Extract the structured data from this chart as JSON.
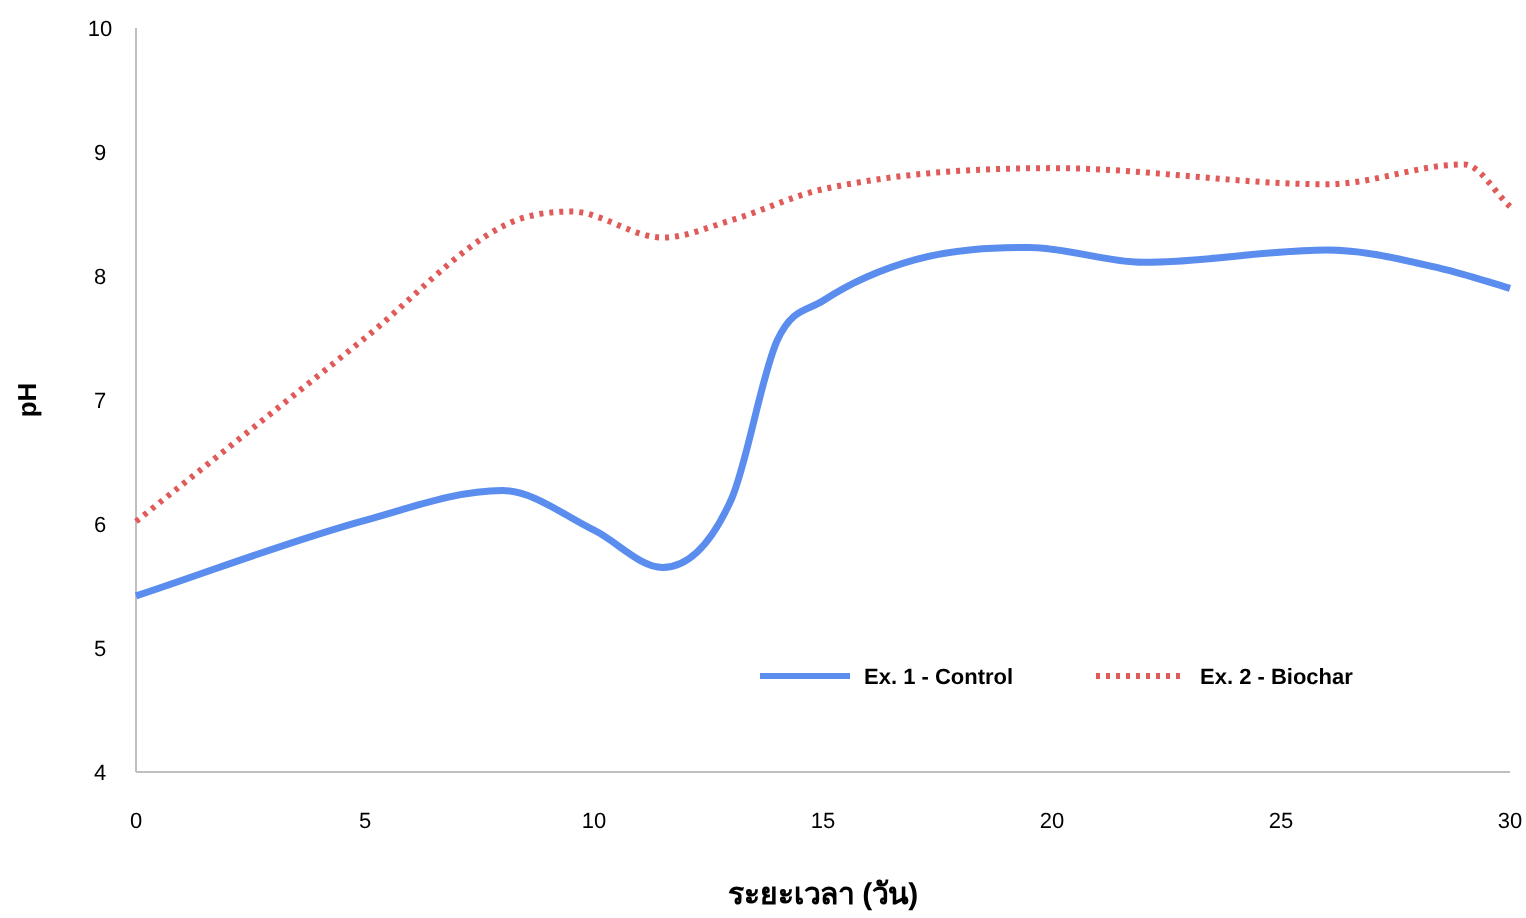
{
  "chart_data": {
    "type": "line",
    "xlabel": "ระยะเวลา (วัน)",
    "ylabel": "pH",
    "xlim": [
      0,
      30
    ],
    "ylim": [
      4,
      10
    ],
    "xticks": [
      0,
      5,
      10,
      15,
      20,
      25,
      30
    ],
    "yticks": [
      4,
      5,
      6,
      7,
      8,
      9,
      10
    ],
    "legend": "bottom",
    "grid": false,
    "series": [
      {
        "name": "Ex. 1 - Control",
        "color": "#5b8def",
        "line_style": "solid",
        "x": [
          0,
          5,
          8,
          10,
          11.5,
          13,
          14,
          15,
          17,
          19.5,
          22,
          26,
          28.5,
          30
        ],
        "values": [
          5.42,
          6.03,
          6.27,
          5.95,
          5.65,
          6.2,
          7.48,
          7.8,
          8.13,
          8.23,
          8.11,
          8.21,
          8.06,
          7.9
        ]
      },
      {
        "name": "Ex. 2 - Biochar",
        "color": "#e05a5a",
        "line_style": "dotted",
        "x": [
          0,
          5,
          8,
          9.5,
          11.5,
          13,
          15,
          20,
          26,
          29,
          30
        ],
        "values": [
          6.02,
          7.5,
          8.4,
          8.52,
          8.31,
          8.45,
          8.7,
          8.87,
          8.74,
          8.9,
          8.56
        ]
      }
    ]
  }
}
